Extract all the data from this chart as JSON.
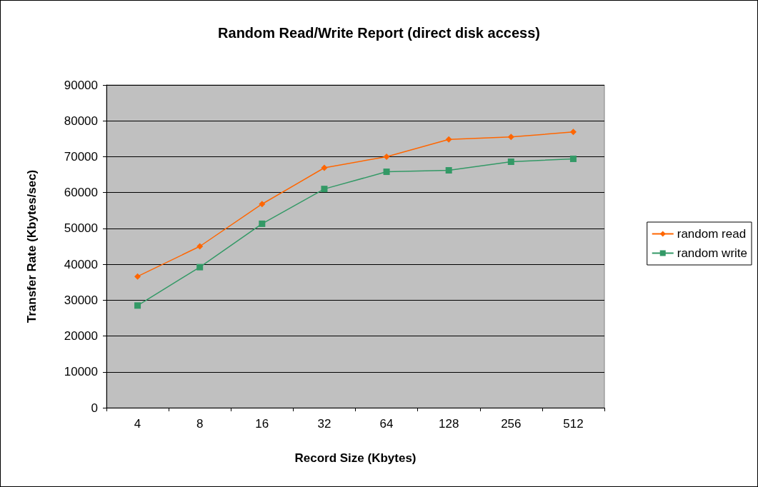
{
  "chart_data": {
    "type": "line",
    "title": "Random Read/Write Report (direct disk access)",
    "xlabel": "Record Size (Kbytes)",
    "ylabel": "Transfer Rate (Kbytes/sec)",
    "categories": [
      "4",
      "8",
      "16",
      "32",
      "64",
      "128",
      "256",
      "512"
    ],
    "series": [
      {
        "name": "random read",
        "color": "#ff6600",
        "marker": "diamond",
        "values": [
          36600,
          45000,
          56800,
          66900,
          70000,
          74800,
          75500,
          76900
        ]
      },
      {
        "name": "random write",
        "color": "#339966",
        "marker": "square",
        "values": [
          28500,
          39200,
          51300,
          61000,
          65800,
          66200,
          68600,
          69400
        ]
      }
    ],
    "ylim": [
      0,
      90000
    ],
    "yticks": [
      0,
      10000,
      20000,
      30000,
      40000,
      50000,
      60000,
      70000,
      80000,
      90000
    ],
    "grid": "y",
    "legend": "right"
  }
}
